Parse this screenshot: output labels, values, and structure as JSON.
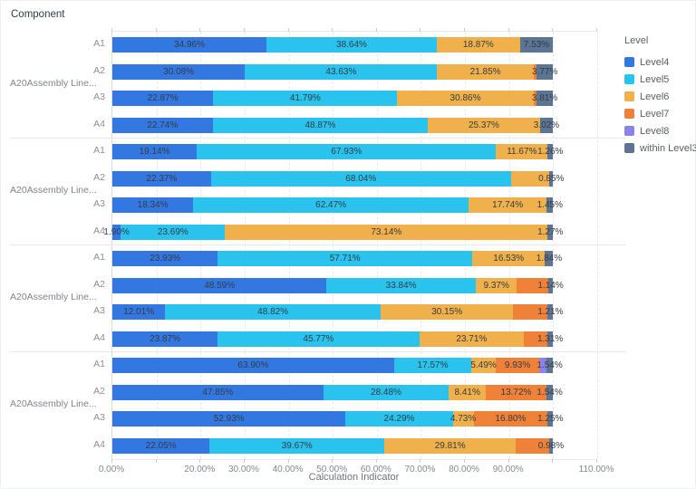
{
  "page": {
    "title": "Component"
  },
  "chart_data": {
    "type": "bar",
    "orientation": "horizontal",
    "stacked": true,
    "title": "Component",
    "xlabel": "Calculation Indicator",
    "ylabel": "",
    "x_axis": {
      "min": 0,
      "max": 110,
      "tick_step": 10,
      "tick_labels": [
        "0.00%",
        "",
        "20.00%",
        "30.00%",
        "40.00%",
        "50.00%",
        "60.00%",
        "70.00%",
        "80.00%",
        "90.00%",
        "",
        "110.00%"
      ],
      "grid": true
    },
    "legend": {
      "title": "Level",
      "position": "right",
      "items": [
        {
          "name": "Level4",
          "color": "#3377e0"
        },
        {
          "name": "Level5",
          "color": "#29c3ee"
        },
        {
          "name": "Level6",
          "color": "#f0b04b"
        },
        {
          "name": "Level7",
          "color": "#ef8139"
        },
        {
          "name": "Level8",
          "color": "#8d82e8"
        },
        {
          "name": "within Level3",
          "color": "#5c7594"
        }
      ]
    },
    "groups": [
      {
        "label": "A20Assembly Line...",
        "rows": [
          {
            "label": "A1",
            "segments": [
              {
                "level": "Level4",
                "value": 34.96,
                "label": "34.96%"
              },
              {
                "level": "Level5",
                "value": 38.64,
                "label": "38.64%"
              },
              {
                "level": "Level6",
                "value": 18.87,
                "label": "18.87%"
              },
              {
                "level": "within Level3",
                "value": 7.53,
                "label": "7.53%"
              }
            ]
          },
          {
            "label": "A2",
            "segments": [
              {
                "level": "Level4",
                "value": 30.08,
                "label": "30.08%"
              },
              {
                "level": "Level5",
                "value": 43.63,
                "label": "43.63%"
              },
              {
                "level": "Level6",
                "value": 21.85,
                "label": "21.85%"
              },
              {
                "level": "Level7",
                "value": 0.67,
                "label": ""
              },
              {
                "level": "within Level3",
                "value": 3.77,
                "label": "3.77%"
              }
            ]
          },
          {
            "label": "A3",
            "segments": [
              {
                "level": "Level4",
                "value": 22.87,
                "label": "22.87%"
              },
              {
                "level": "Level5",
                "value": 41.79,
                "label": "41.79%"
              },
              {
                "level": "Level6",
                "value": 30.86,
                "label": "30.86%"
              },
              {
                "level": "Level7",
                "value": 0.67,
                "label": ""
              },
              {
                "level": "within Level3",
                "value": 3.81,
                "label": "3.81%"
              }
            ]
          },
          {
            "label": "A4",
            "segments": [
              {
                "level": "Level4",
                "value": 22.74,
                "label": "22.74%"
              },
              {
                "level": "Level5",
                "value": 48.87,
                "label": "48.87%"
              },
              {
                "level": "Level6",
                "value": 25.37,
                "label": "25.37%"
              },
              {
                "level": "within Level3",
                "value": 3.02,
                "label": "3.02%"
              }
            ]
          }
        ]
      },
      {
        "label": "A20Assembly Line...",
        "rows": [
          {
            "label": "A1",
            "segments": [
              {
                "level": "Level4",
                "value": 19.14,
                "label": "19.14%"
              },
              {
                "level": "Level5",
                "value": 67.93,
                "label": "67.93%"
              },
              {
                "level": "Level6",
                "value": 11.67,
                "label": "11.67%"
              },
              {
                "level": "within Level3",
                "value": 1.26,
                "label": "1.26%"
              }
            ]
          },
          {
            "label": "A2",
            "segments": [
              {
                "level": "Level4",
                "value": 22.37,
                "label": "22.37%"
              },
              {
                "level": "Level5",
                "value": 68.04,
                "label": "68.04%"
              },
              {
                "level": "Level6",
                "value": 8.74,
                "label": ""
              },
              {
                "level": "within Level3",
                "value": 0.85,
                "label": "0.85%"
              }
            ]
          },
          {
            "label": "A3",
            "segments": [
              {
                "level": "Level4",
                "value": 18.34,
                "label": "18.34%"
              },
              {
                "level": "Level5",
                "value": 62.47,
                "label": "62.47%"
              },
              {
                "level": "Level6",
                "value": 17.74,
                "label": "17.74%"
              },
              {
                "level": "within Level3",
                "value": 1.45,
                "label": "1.45%"
              }
            ]
          },
          {
            "label": "A4",
            "segments": [
              {
                "level": "Level4",
                "value": 1.9,
                "label": "1.90%"
              },
              {
                "level": "Level5",
                "value": 23.69,
                "label": "23.69%"
              },
              {
                "level": "Level6",
                "value": 73.14,
                "label": "73.14%"
              },
              {
                "level": "within Level3",
                "value": 1.27,
                "label": "1.27%"
              }
            ]
          }
        ]
      },
      {
        "label": "A20Assembly Line...",
        "rows": [
          {
            "label": "A1",
            "segments": [
              {
                "level": "Level4",
                "value": 23.93,
                "label": "23.93%"
              },
              {
                "level": "Level5",
                "value": 57.71,
                "label": "57.71%"
              },
              {
                "level": "Level6",
                "value": 16.53,
                "label": "16.53%"
              },
              {
                "level": "within Level3",
                "value": 1.84,
                "label": "1.84%"
              }
            ]
          },
          {
            "label": "A2",
            "segments": [
              {
                "level": "Level4",
                "value": 48.59,
                "label": "48.59%"
              },
              {
                "level": "Level5",
                "value": 33.84,
                "label": "33.84%"
              },
              {
                "level": "Level6",
                "value": 9.37,
                "label": "9.37%"
              },
              {
                "level": "Level7",
                "value": 7.06,
                "label": ""
              },
              {
                "level": "within Level3",
                "value": 1.14,
                "label": "1.14%"
              }
            ]
          },
          {
            "label": "A3",
            "segments": [
              {
                "level": "Level4",
                "value": 12.01,
                "label": "12.01%"
              },
              {
                "level": "Level5",
                "value": 48.82,
                "label": "48.82%"
              },
              {
                "level": "Level6",
                "value": 30.15,
                "label": "30.15%"
              },
              {
                "level": "Level7",
                "value": 7.81,
                "label": ""
              },
              {
                "level": "within Level3",
                "value": 1.21,
                "label": "1.21%"
              }
            ]
          },
          {
            "label": "A4",
            "segments": [
              {
                "level": "Level4",
                "value": 23.87,
                "label": "23.87%"
              },
              {
                "level": "Level5",
                "value": 45.77,
                "label": "45.77%"
              },
              {
                "level": "Level6",
                "value": 23.71,
                "label": "23.71%"
              },
              {
                "level": "Level7",
                "value": 5.34,
                "label": ""
              },
              {
                "level": "within Level3",
                "value": 1.31,
                "label": "1.31%"
              }
            ]
          }
        ]
      },
      {
        "label": "A20Assembly Line...",
        "rows": [
          {
            "label": "A1",
            "segments": [
              {
                "level": "Level4",
                "value": 63.9,
                "label": "63.90%"
              },
              {
                "level": "Level5",
                "value": 17.57,
                "label": "17.57%"
              },
              {
                "level": "Level6",
                "value": 5.49,
                "label": "5.49%"
              },
              {
                "level": "Level7",
                "value": 9.93,
                "label": "9.93%"
              },
              {
                "level": "Level8",
                "value": 1.57,
                "label": ""
              },
              {
                "level": "within Level3",
                "value": 1.54,
                "label": "1.54%"
              }
            ]
          },
          {
            "label": "A2",
            "segments": [
              {
                "level": "Level4",
                "value": 47.85,
                "label": "47.85%"
              },
              {
                "level": "Level5",
                "value": 28.48,
                "label": "28.48%"
              },
              {
                "level": "Level6",
                "value": 8.41,
                "label": "8.41%"
              },
              {
                "level": "Level7",
                "value": 13.72,
                "label": "13.72%"
              },
              {
                "level": "within Level3",
                "value": 1.54,
                "label": "1.54%"
              }
            ]
          },
          {
            "label": "A3",
            "segments": [
              {
                "level": "Level4",
                "value": 52.93,
                "label": "52.93%"
              },
              {
                "level": "Level5",
                "value": 24.29,
                "label": "24.29%"
              },
              {
                "level": "Level6",
                "value": 4.73,
                "label": "4.73%"
              },
              {
                "level": "Level7",
                "value": 16.8,
                "label": "16.80%"
              },
              {
                "level": "within Level3",
                "value": 1.25,
                "label": "1.25%"
              }
            ]
          },
          {
            "label": "A4",
            "segments": [
              {
                "level": "Level4",
                "value": 22.05,
                "label": "22.05%"
              },
              {
                "level": "Level5",
                "value": 39.67,
                "label": "39.67%"
              },
              {
                "level": "Level6",
                "value": 29.81,
                "label": "29.81%"
              },
              {
                "level": "Level7",
                "value": 7.49,
                "label": ""
              },
              {
                "level": "within Level3",
                "value": 0.98,
                "label": "0.98%"
              }
            ]
          }
        ]
      }
    ]
  }
}
